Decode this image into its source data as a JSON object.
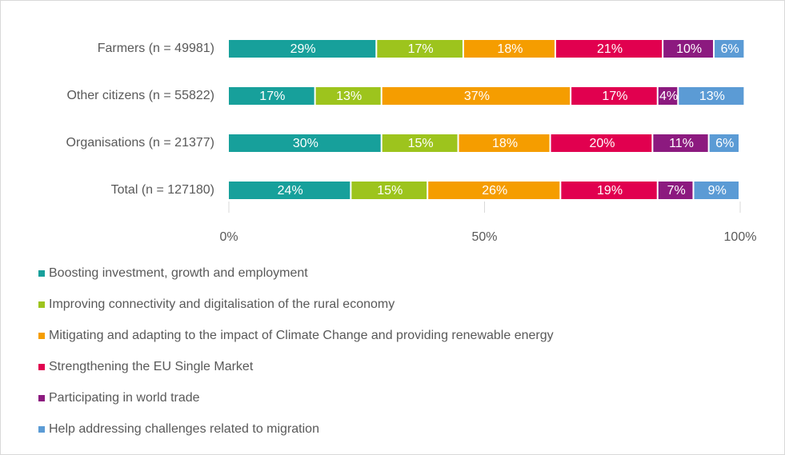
{
  "chart_data": {
    "type": "stacked_bar_horizontal",
    "categories": [
      "Farmers (n = 49981)",
      "Other citizens (n = 55822)",
      "Organisations (n = 21377)",
      "Total (n = 127180)"
    ],
    "series": [
      {
        "name": "Boosting investment, growth and employment",
        "color": "#17a09b",
        "values": [
          29,
          17,
          30,
          24
        ],
        "value_labels": [
          "29%",
          "17%",
          "30%",
          "24%"
        ]
      },
      {
        "name": "Improving connectivity and digitalisation of the rural economy",
        "color": "#9dc41d",
        "values": [
          17,
          13,
          15,
          15
        ],
        "value_labels": [
          "17%",
          "13%",
          "15%",
          "15%"
        ]
      },
      {
        "name": "Mitigating and adapting to the impact of Climate Change and providing renewable  energy",
        "color": "#f59d00",
        "values": [
          18,
          37,
          18,
          26
        ],
        "value_labels": [
          "18%",
          "37%",
          "18%",
          "26%"
        ]
      },
      {
        "name": "Strengthening the EU Single Market",
        "color": "#e1004f",
        "values": [
          21,
          17,
          20,
          19
        ],
        "value_labels": [
          "21%",
          "17%",
          "20%",
          "19%"
        ]
      },
      {
        "name": "Participating in world trade",
        "color": "#8c1a7f",
        "values": [
          10,
          4,
          11,
          7
        ],
        "value_labels": [
          "10%",
          "4%",
          "11%",
          "7%"
        ]
      },
      {
        "name": "Help addressing challenges related to migration",
        "color": "#5b9bd5",
        "values": [
          6,
          13,
          6,
          9
        ],
        "value_labels": [
          "6%",
          "13%",
          "6%",
          "9%"
        ]
      }
    ],
    "xlim": [
      0,
      100
    ],
    "xticks": [
      {
        "value": 0,
        "label": "0%"
      },
      {
        "value": 50,
        "label": "50%"
      },
      {
        "value": 100,
        "label": "100%"
      }
    ]
  }
}
